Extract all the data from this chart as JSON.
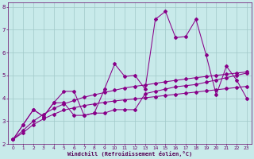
{
  "xlabel": "Windchill (Refroidissement éolien,°C)",
  "x": [
    0,
    1,
    2,
    3,
    4,
    5,
    6,
    7,
    8,
    9,
    10,
    11,
    12,
    13,
    14,
    15,
    16,
    17,
    18,
    19,
    20,
    21,
    22,
    23
  ],
  "line_spiky1": [
    2.2,
    2.85,
    3.5,
    3.2,
    3.8,
    3.8,
    3.25,
    3.25,
    3.35,
    3.35,
    3.5,
    3.5,
    3.5,
    4.2,
    4.3,
    4.4,
    4.5,
    4.55,
    4.6,
    4.7,
    4.8,
    4.9,
    5.0,
    5.1
  ],
  "line_spiky2": [
    2.2,
    2.85,
    3.5,
    3.2,
    3.8,
    4.3,
    4.3,
    3.25,
    3.35,
    4.4,
    5.5,
    4.95,
    5.0,
    4.4,
    7.45,
    7.8,
    6.65,
    6.7,
    7.45,
    5.9,
    4.15,
    5.4,
    4.8,
    4.0
  ],
  "line_reg_upper": [
    2.2,
    2.6,
    3.0,
    3.3,
    3.55,
    3.75,
    3.9,
    4.05,
    4.15,
    4.25,
    4.35,
    4.45,
    4.52,
    4.58,
    4.65,
    4.72,
    4.78,
    4.84,
    4.9,
    4.95,
    5.0,
    5.05,
    5.1,
    5.15
  ],
  "line_reg_lower": [
    2.2,
    2.5,
    2.85,
    3.1,
    3.3,
    3.48,
    3.58,
    3.68,
    3.75,
    3.82,
    3.88,
    3.93,
    3.97,
    4.02,
    4.07,
    4.12,
    4.17,
    4.22,
    4.27,
    4.32,
    4.37,
    4.42,
    4.47,
    4.52
  ],
  "xlim": [
    -0.5,
    23.5
  ],
  "ylim": [
    2.0,
    8.2
  ],
  "yticks": [
    2,
    3,
    4,
    5,
    6,
    7,
    8
  ],
  "xticks": [
    0,
    1,
    2,
    3,
    4,
    5,
    6,
    7,
    8,
    9,
    10,
    11,
    12,
    13,
    14,
    15,
    16,
    17,
    18,
    19,
    20,
    21,
    22,
    23
  ],
  "line_color": "#880088",
  "bg_color": "#c8eaea",
  "grid_color": "#a0c8c8",
  "tick_color": "#660066",
  "label_color": "#550055"
}
